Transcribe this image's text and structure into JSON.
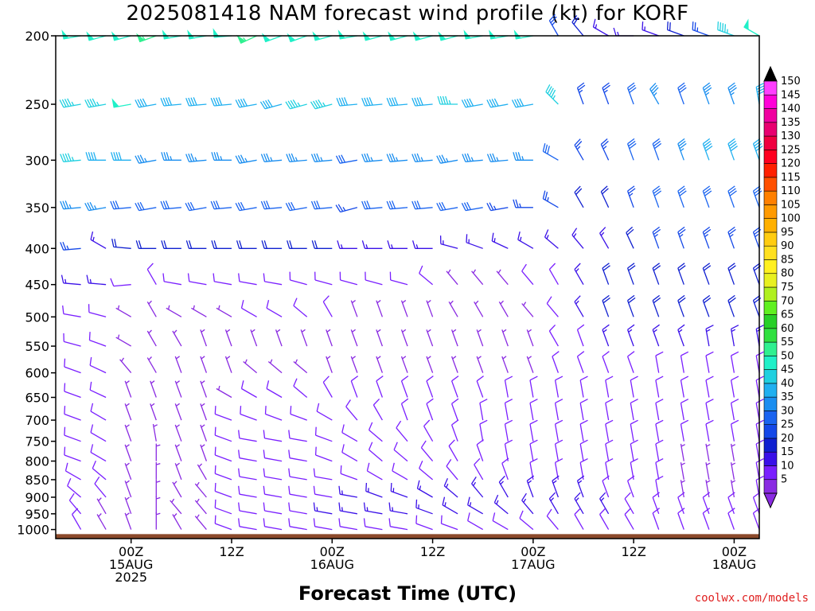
{
  "chart_data": {
    "type": "wind_barbs",
    "title": "2025081418 NAM forecast wind profile (kt) for KORF",
    "xlabel": "Forecast Time (UTC)",
    "ylabel": "",
    "units": "kt",
    "y_axis": {
      "scale": "log-pressure",
      "range": [
        1030,
        200
      ],
      "ticks": [
        200,
        250,
        300,
        350,
        400,
        450,
        500,
        550,
        600,
        650,
        700,
        750,
        800,
        850,
        900,
        950,
        1000
      ]
    },
    "x_axis": {
      "range_hours": [
        -3,
        81
      ],
      "ticks": [
        {
          "hour": 6,
          "lines": [
            "00Z",
            "15AUG",
            "2025"
          ]
        },
        {
          "hour": 18,
          "lines": [
            "12Z"
          ]
        },
        {
          "hour": 30,
          "lines": [
            "00Z",
            "16AUG"
          ]
        },
        {
          "hour": 42,
          "lines": [
            "12Z"
          ]
        },
        {
          "hour": 54,
          "lines": [
            "00Z",
            "17AUG"
          ]
        },
        {
          "hour": 66,
          "lines": [
            "12Z"
          ]
        },
        {
          "hour": 78,
          "lines": [
            "00Z",
            "18AUG"
          ]
        }
      ]
    },
    "forecast_hours_start": 0,
    "forecast_hours_step": 3,
    "forecast_hours_count": 28,
    "levels": [
      200,
      250,
      300,
      350,
      400,
      450,
      500,
      550,
      600,
      650,
      700,
      750,
      800,
      850,
      900,
      950,
      1000
    ],
    "wind_speed_kt_by_level": [
      [
        50,
        50,
        50,
        55,
        50,
        50,
        50,
        55,
        50,
        50,
        50,
        50,
        50,
        50,
        50,
        50,
        50,
        50,
        50,
        25,
        20,
        15,
        15,
        15,
        20,
        25,
        45,
        50
      ],
      [
        45,
        45,
        50,
        40,
        40,
        40,
        40,
        40,
        40,
        45,
        45,
        40,
        40,
        40,
        40,
        45,
        40,
        40,
        40,
        45,
        25,
        25,
        30,
        35,
        30,
        35,
        35,
        40
      ],
      [
        45,
        40,
        40,
        35,
        35,
        35,
        35,
        35,
        35,
        35,
        35,
        30,
        35,
        35,
        35,
        35,
        35,
        35,
        35,
        30,
        25,
        25,
        30,
        30,
        35,
        40,
        40,
        40
      ],
      [
        35,
        35,
        30,
        30,
        30,
        30,
        30,
        30,
        30,
        30,
        30,
        25,
        30,
        30,
        30,
        30,
        30,
        25,
        25,
        25,
        20,
        20,
        25,
        30,
        30,
        30,
        30,
        30
      ],
      [
        25,
        15,
        20,
        20,
        20,
        20,
        20,
        20,
        20,
        20,
        20,
        15,
        15,
        15,
        15,
        15,
        15,
        15,
        15,
        15,
        15,
        15,
        20,
        25,
        25,
        25,
        25,
        25
      ],
      [
        15,
        15,
        10,
        10,
        10,
        10,
        10,
        10,
        10,
        10,
        10,
        10,
        10,
        10,
        10,
        5,
        5,
        5,
        10,
        10,
        15,
        20,
        20,
        20,
        20,
        20,
        20,
        20
      ],
      [
        10,
        10,
        5,
        5,
        5,
        5,
        5,
        10,
        10,
        10,
        10,
        5,
        5,
        5,
        5,
        5,
        5,
        5,
        5,
        10,
        15,
        20,
        20,
        20,
        20,
        20,
        20,
        20
      ],
      [
        10,
        10,
        5,
        5,
        5,
        5,
        5,
        5,
        5,
        5,
        5,
        5,
        5,
        5,
        5,
        5,
        5,
        5,
        5,
        10,
        10,
        15,
        15,
        15,
        15,
        15,
        15,
        15
      ],
      [
        10,
        10,
        5,
        5,
        5,
        5,
        5,
        5,
        5,
        5,
        5,
        5,
        5,
        5,
        5,
        5,
        5,
        5,
        5,
        10,
        10,
        10,
        10,
        10,
        10,
        10,
        10,
        10
      ],
      [
        10,
        10,
        5,
        5,
        5,
        5,
        5,
        10,
        10,
        10,
        10,
        10,
        10,
        10,
        10,
        10,
        10,
        10,
        10,
        10,
        10,
        10,
        10,
        10,
        10,
        10,
        10,
        10
      ],
      [
        10,
        10,
        5,
        5,
        5,
        5,
        10,
        10,
        10,
        10,
        10,
        10,
        10,
        10,
        10,
        10,
        10,
        10,
        10,
        10,
        10,
        10,
        10,
        10,
        10,
        10,
        10,
        10
      ],
      [
        10,
        10,
        5,
        5,
        5,
        5,
        10,
        10,
        10,
        10,
        10,
        10,
        10,
        10,
        10,
        10,
        10,
        10,
        10,
        10,
        10,
        10,
        10,
        10,
        10,
        10,
        10,
        10
      ],
      [
        10,
        10,
        5,
        5,
        5,
        5,
        10,
        10,
        10,
        10,
        10,
        10,
        10,
        10,
        10,
        10,
        10,
        10,
        10,
        10,
        10,
        10,
        10,
        10,
        5,
        5,
        5,
        10
      ],
      [
        10,
        10,
        5,
        5,
        5,
        5,
        10,
        10,
        10,
        10,
        10,
        10,
        10,
        10,
        10,
        10,
        10,
        10,
        10,
        10,
        10,
        10,
        10,
        10,
        5,
        5,
        5,
        10
      ],
      [
        10,
        10,
        5,
        5,
        5,
        5,
        10,
        10,
        10,
        10,
        10,
        15,
        15,
        15,
        15,
        15,
        15,
        15,
        15,
        15,
        15,
        10,
        10,
        10,
        5,
        5,
        5,
        10
      ],
      [
        10,
        5,
        5,
        5,
        5,
        5,
        10,
        10,
        10,
        10,
        15,
        15,
        15,
        15,
        15,
        15,
        15,
        15,
        15,
        15,
        15,
        15,
        10,
        10,
        10,
        10,
        10,
        10
      ],
      [
        10,
        5,
        5,
        5,
        5,
        5,
        10,
        10,
        10,
        10,
        10,
        10,
        10,
        10,
        10,
        10,
        10,
        10,
        10,
        10,
        10,
        10,
        10,
        10,
        10,
        10,
        10,
        10
      ]
    ],
    "wind_direction_deg_by_level": [
      [
        260,
        255,
        255,
        250,
        260,
        260,
        265,
        245,
        250,
        250,
        255,
        260,
        255,
        255,
        255,
        255,
        260,
        260,
        260,
        330,
        320,
        300,
        270,
        290,
        290,
        290,
        290,
        300
      ],
      [
        260,
        260,
        260,
        260,
        265,
        265,
        265,
        260,
        255,
        255,
        255,
        265,
        265,
        265,
        265,
        270,
        260,
        260,
        260,
        315,
        340,
        340,
        340,
        330,
        340,
        340,
        340,
        350
      ],
      [
        265,
        270,
        270,
        260,
        270,
        265,
        270,
        260,
        265,
        265,
        265,
        260,
        265,
        265,
        265,
        260,
        265,
        265,
        270,
        300,
        330,
        335,
        340,
        340,
        340,
        340,
        340,
        340
      ],
      [
        265,
        260,
        265,
        260,
        265,
        260,
        265,
        260,
        265,
        260,
        265,
        255,
        265,
        265,
        265,
        260,
        260,
        260,
        270,
        300,
        330,
        335,
        340,
        340,
        340,
        340,
        340,
        340
      ],
      [
        265,
        300,
        275,
        270,
        270,
        270,
        270,
        270,
        270,
        270,
        270,
        270,
        270,
        270,
        270,
        285,
        290,
        295,
        300,
        310,
        320,
        330,
        335,
        340,
        340,
        340,
        340,
        340
      ],
      [
        275,
        275,
        265,
        330,
        280,
        280,
        280,
        280,
        280,
        285,
        285,
        285,
        285,
        285,
        310,
        320,
        320,
        320,
        320,
        330,
        330,
        340,
        340,
        340,
        340,
        340,
        340,
        340
      ],
      [
        280,
        285,
        300,
        330,
        300,
        300,
        300,
        300,
        300,
        310,
        330,
        340,
        340,
        340,
        340,
        330,
        330,
        330,
        320,
        320,
        330,
        340,
        340,
        340,
        340,
        340,
        340,
        340
      ],
      [
        285,
        290,
        300,
        330,
        330,
        340,
        340,
        340,
        340,
        340,
        340,
        340,
        340,
        340,
        340,
        340,
        340,
        340,
        340,
        330,
        340,
        340,
        340,
        340,
        340,
        350,
        350,
        350
      ],
      [
        290,
        295,
        320,
        330,
        340,
        340,
        340,
        310,
        310,
        310,
        340,
        340,
        340,
        340,
        340,
        340,
        340,
        340,
        340,
        340,
        340,
        340,
        340,
        350,
        350,
        350,
        350,
        350
      ],
      [
        290,
        295,
        340,
        340,
        340,
        340,
        300,
        300,
        300,
        310,
        330,
        340,
        340,
        340,
        340,
        340,
        340,
        350,
        350,
        350,
        350,
        350,
        350,
        350,
        350,
        350,
        350,
        350
      ],
      [
        290,
        300,
        340,
        340,
        340,
        340,
        290,
        290,
        290,
        290,
        300,
        320,
        330,
        340,
        340,
        340,
        350,
        350,
        350,
        350,
        350,
        350,
        350,
        350,
        350,
        350,
        350,
        350
      ],
      [
        290,
        300,
        340,
        350,
        340,
        340,
        290,
        280,
        280,
        280,
        290,
        300,
        310,
        320,
        330,
        340,
        350,
        350,
        350,
        350,
        350,
        350,
        350,
        350,
        350,
        350,
        350,
        350
      ],
      [
        290,
        300,
        340,
        360,
        340,
        340,
        290,
        280,
        280,
        280,
        290,
        300,
        310,
        310,
        320,
        330,
        340,
        350,
        350,
        350,
        350,
        350,
        350,
        350,
        350,
        350,
        350,
        350
      ],
      [
        300,
        310,
        340,
        360,
        340,
        330,
        290,
        280,
        280,
        280,
        280,
        290,
        300,
        300,
        310,
        320,
        330,
        340,
        350,
        350,
        350,
        350,
        350,
        350,
        350,
        350,
        350,
        350
      ],
      [
        310,
        320,
        340,
        360,
        330,
        320,
        290,
        280,
        280,
        280,
        280,
        280,
        290,
        290,
        300,
        310,
        320,
        330,
        340,
        340,
        340,
        340,
        340,
        350,
        350,
        350,
        350,
        350
      ],
      [
        320,
        330,
        340,
        360,
        320,
        320,
        290,
        280,
        280,
        280,
        280,
        280,
        280,
        280,
        290,
        300,
        300,
        310,
        320,
        330,
        330,
        330,
        330,
        340,
        340,
        340,
        340,
        340
      ],
      [
        330,
        330,
        340,
        360,
        330,
        320,
        290,
        280,
        280,
        280,
        280,
        280,
        280,
        280,
        290,
        290,
        300,
        300,
        310,
        320,
        330,
        330,
        330,
        340,
        340,
        340,
        340,
        340
      ]
    ],
    "colorbar": {
      "labels": [
        5,
        10,
        15,
        20,
        25,
        30,
        35,
        40,
        45,
        50,
        55,
        60,
        65,
        70,
        75,
        80,
        85,
        90,
        95,
        100,
        105,
        110,
        115,
        120,
        125,
        130,
        135,
        140,
        145,
        150
      ],
      "colors": [
        "#8a2be2",
        "#7a1fff",
        "#3a10e8",
        "#1020d0",
        "#1448e8",
        "#1a64f0",
        "#1a8ef0",
        "#20b0f0",
        "#20d0e0",
        "#20f0c8",
        "#30f090",
        "#30e040",
        "#28d028",
        "#60f020",
        "#b0f020",
        "#e8f020",
        "#fff020",
        "#ffe020",
        "#ffcc10",
        "#ffb000",
        "#ff9a00",
        "#ff8000",
        "#ff5000",
        "#ff2000",
        "#ff0020",
        "#f00040",
        "#e80070",
        "#f000a0",
        "#ff00d8",
        "#ff40ff"
      ]
    },
    "ground": {
      "pressure_hpa": 1015,
      "color": "#8b4a2b"
    },
    "legend": "right colorbar"
  },
  "credit": "coolwx.com/models"
}
